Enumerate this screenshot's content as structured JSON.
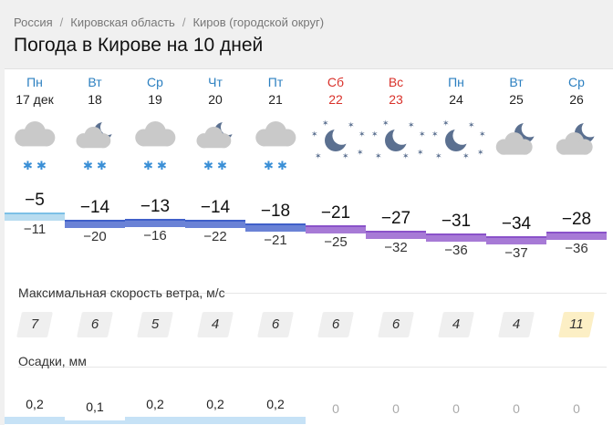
{
  "breadcrumb": [
    "Россия",
    "Кировская область",
    "Киров (городской округ)"
  ],
  "title": "Погода в Кирове на 10 дней",
  "wind_label": "Максимальная скорость ветра, м/с",
  "precip_label": "Осадки, мм",
  "colors": {
    "weekday": "#2b7fc0",
    "weekend": "#d9322b",
    "snow": "#3a8fd6",
    "cloud": "#c9c9c9",
    "moon": "#5b7090",
    "bar_warm": "#b8dcf0",
    "bar_cold": "#6a82d6",
    "bar_coldest": "#a77ad6"
  },
  "days": [
    {
      "dow": "Пн",
      "date": "17 дек",
      "weekend": false,
      "icon": "cloud-snow-icon",
      "tmax": "−5",
      "tmin": "−11",
      "wind": "7",
      "precip": "0,2"
    },
    {
      "dow": "Вт",
      "date": "18",
      "weekend": false,
      "icon": "moon-cloud-snow-icon",
      "tmax": "−14",
      "tmin": "−20",
      "wind": "6",
      "precip": "0,1"
    },
    {
      "dow": "Ср",
      "date": "19",
      "weekend": false,
      "icon": "cloud-snow-icon",
      "tmax": "−13",
      "tmin": "−16",
      "wind": "5",
      "precip": "0,2"
    },
    {
      "dow": "Чт",
      "date": "20",
      "weekend": false,
      "icon": "moon-cloud-snow-icon",
      "tmax": "−14",
      "tmin": "−22",
      "wind": "4",
      "precip": "0,2"
    },
    {
      "dow": "Пт",
      "date": "21",
      "weekend": false,
      "icon": "cloud-snow-icon",
      "tmax": "−18",
      "tmin": "−21",
      "wind": "6",
      "precip": "0,2"
    },
    {
      "dow": "Сб",
      "date": "22",
      "weekend": true,
      "icon": "moon-stars-icon",
      "tmax": "−21",
      "tmin": "−25",
      "wind": "6",
      "precip": "0"
    },
    {
      "dow": "Вс",
      "date": "23",
      "weekend": true,
      "icon": "moon-stars-icon",
      "tmax": "−27",
      "tmin": "−32",
      "wind": "6",
      "precip": "0"
    },
    {
      "dow": "Пн",
      "date": "24",
      "weekend": false,
      "icon": "moon-stars-icon",
      "tmax": "−31",
      "tmin": "−36",
      "wind": "4",
      "precip": "0"
    },
    {
      "dow": "Вт",
      "date": "25",
      "weekend": false,
      "icon": "moon-cloud-icon",
      "tmax": "−34",
      "tmin": "−37",
      "wind": "4",
      "precip": "0"
    },
    {
      "dow": "Ср",
      "date": "26",
      "weekend": false,
      "icon": "moon-cloud-icon",
      "tmax": "−28",
      "tmin": "−36",
      "wind": "11",
      "precip": "0"
    }
  ]
}
